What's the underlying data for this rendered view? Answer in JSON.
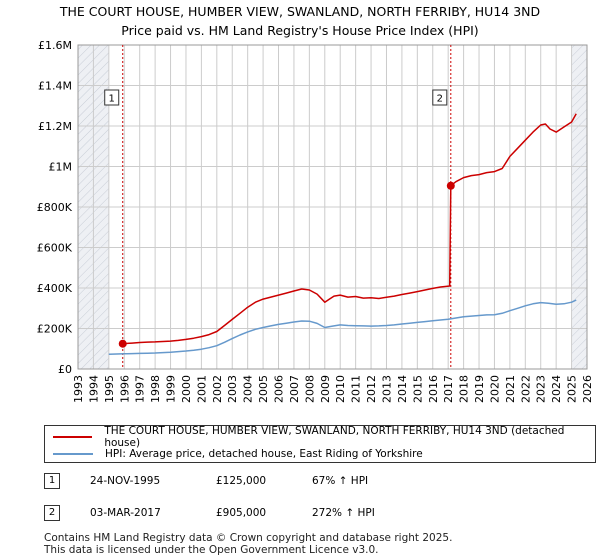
{
  "title_line1": "THE COURT HOUSE, HUMBER VIEW, SWANLAND, NORTH FERRIBY, HU14 3ND",
  "title_line2": "Price paid vs. HM Land Registry's House Price Index (HPI)",
  "colors": {
    "property": "#cc0000",
    "hpi": "#6699cc",
    "shade": "#dde6f2",
    "grid": "#cccccc",
    "marker_line": "#cc0000"
  },
  "chart_data": {
    "type": "line",
    "title": "Price paid vs. HM Land Registry's House Price Index (HPI)",
    "xlabel": "",
    "ylabel": "",
    "xlim": [
      1993,
      2026
    ],
    "ylim": [
      0,
      1600000
    ],
    "x_ticks": [
      "1993",
      "1994",
      "1995",
      "1996",
      "1997",
      "1998",
      "1999",
      "2000",
      "2001",
      "2002",
      "2003",
      "2004",
      "2005",
      "2006",
      "2007",
      "2008",
      "2009",
      "2010",
      "2011",
      "2012",
      "2013",
      "2014",
      "2015",
      "2016",
      "2017",
      "2018",
      "2019",
      "2020",
      "2021",
      "2022",
      "2023",
      "2024",
      "2025",
      "2026"
    ],
    "y_ticks": [
      {
        "value": 0,
        "label": "£0"
      },
      {
        "value": 200000,
        "label": "£200K"
      },
      {
        "value": 400000,
        "label": "£400K"
      },
      {
        "value": 600000,
        "label": "£600K"
      },
      {
        "value": 800000,
        "label": "£800K"
      },
      {
        "value": 1000000,
        "label": "£1M"
      },
      {
        "value": 1200000,
        "label": "£1.2M"
      },
      {
        "value": 1400000,
        "label": "£1.4M"
      },
      {
        "value": 1600000,
        "label": "£1.6M"
      }
    ],
    "shaded_ranges": [
      [
        1993,
        1995.0
      ],
      [
        2025.0,
        2026
      ]
    ],
    "series": [
      {
        "name": "THE COURT HOUSE, HUMBER VIEW, SWANLAND, NORTH FERRIBY, HU14 3ND (detached house)",
        "x": [
          1995.9,
          1996.5,
          1997,
          1997.5,
          1998,
          1998.5,
          1999,
          1999.5,
          2000,
          2000.5,
          2001,
          2001.5,
          2002,
          2002.5,
          2003,
          2003.5,
          2004,
          2004.5,
          2005,
          2005.5,
          2006,
          2006.5,
          2007,
          2007.5,
          2008,
          2008.5,
          2009,
          2009.3,
          2009.6,
          2010,
          2010.5,
          2011,
          2011.5,
          2012,
          2012.5,
          2013,
          2013.5,
          2014,
          2014.5,
          2015,
          2015.5,
          2016,
          2016.5,
          2017.1,
          2017.17,
          2017.5,
          2018,
          2018.5,
          2019,
          2019.5,
          2020,
          2020.5,
          2021,
          2021.5,
          2022,
          2022.5,
          2023,
          2023.3,
          2023.6,
          2024,
          2024.5,
          2025,
          2025.3
        ],
        "y": [
          125000,
          128000,
          131000,
          133000,
          134000,
          136000,
          138000,
          141000,
          146000,
          152000,
          160000,
          170000,
          185000,
          215000,
          245000,
          275000,
          305000,
          330000,
          345000,
          355000,
          365000,
          375000,
          385000,
          395000,
          390000,
          370000,
          330000,
          345000,
          360000,
          365000,
          355000,
          358000,
          350000,
          352000,
          348000,
          354000,
          360000,
          368000,
          375000,
          382000,
          390000,
          398000,
          405000,
          410000,
          905000,
          925000,
          945000,
          955000,
          960000,
          970000,
          975000,
          990000,
          1050000,
          1090000,
          1130000,
          1170000,
          1205000,
          1210000,
          1185000,
          1170000,
          1195000,
          1220000,
          1260000
        ]
      },
      {
        "name": "HPI: Average price, detached house, East Riding of Yorkshire",
        "x": [
          1995,
          1995.5,
          1996,
          1996.5,
          1997,
          1997.5,
          1998,
          1998.5,
          1999,
          1999.5,
          2000,
          2000.5,
          2001,
          2001.5,
          2002,
          2002.5,
          2003,
          2003.5,
          2004,
          2004.5,
          2005,
          2005.5,
          2006,
          2006.5,
          2007,
          2007.5,
          2008,
          2008.5,
          2009,
          2009.5,
          2010,
          2010.5,
          2011,
          2011.5,
          2012,
          2012.5,
          2013,
          2013.5,
          2014,
          2014.5,
          2015,
          2015.5,
          2016,
          2016.5,
          2017,
          2017.5,
          2018,
          2018.5,
          2019,
          2019.5,
          2020,
          2020.5,
          2021,
          2021.5,
          2022,
          2022.5,
          2023,
          2023.5,
          2024,
          2024.5,
          2025,
          2025.3
        ],
        "y": [
          73000,
          74000,
          75000,
          76000,
          77000,
          78000,
          79000,
          81000,
          83000,
          86000,
          89000,
          93000,
          98000,
          105000,
          115000,
          132000,
          150000,
          168000,
          183000,
          196000,
          205000,
          213000,
          220000,
          226000,
          232000,
          237000,
          236000,
          225000,
          205000,
          212000,
          218000,
          215000,
          214000,
          213000,
          212000,
          213000,
          215000,
          218000,
          222000,
          226000,
          230000,
          234000,
          238000,
          242000,
          246000,
          252000,
          258000,
          261000,
          264000,
          267000,
          268000,
          275000,
          288000,
          300000,
          312000,
          322000,
          328000,
          325000,
          320000,
          322000,
          330000,
          340000
        ]
      }
    ],
    "annotations": [
      {
        "label": "1",
        "x": 1995.9,
        "y": 125000
      },
      {
        "label": "2",
        "x": 2017.17,
        "y": 905000
      }
    ]
  },
  "legend": {
    "property_label": "THE COURT HOUSE, HUMBER VIEW, SWANLAND, NORTH FERRIBY, HU14 3ND (detached house)",
    "hpi_label": "HPI: Average price, detached house, East Riding of Yorkshire"
  },
  "sales": [
    {
      "num": "1",
      "date": "24-NOV-1995",
      "price": "£125,000",
      "hpi": "67% ↑ HPI"
    },
    {
      "num": "2",
      "date": "03-MAR-2017",
      "price": "£905,000",
      "hpi": "272% ↑ HPI"
    }
  ],
  "footer_line1": "Contains HM Land Registry data © Crown copyright and database right 2025.",
  "footer_line2": "This data is licensed under the Open Government Licence v3.0."
}
